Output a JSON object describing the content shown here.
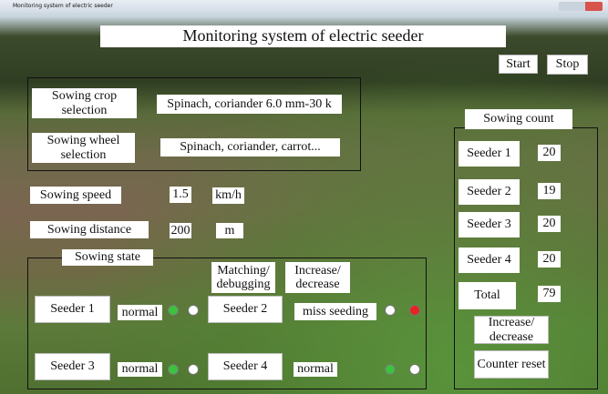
{
  "window_title": "Monitoring system of electric seeder",
  "header": {
    "title": "Monitoring system of electric seeder",
    "start": "Start",
    "stop": "Stop"
  },
  "settings": {
    "crop_label": "Sowing crop selection",
    "crop_value": "Spinach, coriander 6.0 mm-30 k",
    "wheel_label": "Sowing wheel selection",
    "wheel_value": "Spinach, coriander, carrot...",
    "speed_label": "Sowing speed",
    "speed_value": 1.5,
    "speed_unit": "km/h",
    "distance_label": "Sowing distance",
    "distance_value": 200,
    "distance_unit": "m"
  },
  "state": {
    "title": "Sowing state",
    "matching": "Matching/ debugging",
    "adjust": "Increase/ decrease",
    "seeders": [
      {
        "name": "Seeder 1",
        "status": "normal"
      },
      {
        "name": "Seeder 2",
        "status": "miss seeding"
      },
      {
        "name": "Seeder 3",
        "status": "normal"
      },
      {
        "name": "Seeder 4",
        "status": "normal"
      }
    ]
  },
  "count": {
    "title": "Sowing count",
    "rows": [
      {
        "name": "Seeder 1",
        "value": 20
      },
      {
        "name": "Seeder 2",
        "value": 19
      },
      {
        "name": "Seeder 3",
        "value": 20
      },
      {
        "name": "Seeder 4",
        "value": 20
      },
      {
        "name": "Total",
        "value": 79
      }
    ],
    "adjust": "Increase/ decrease",
    "reset": "Counter reset"
  }
}
